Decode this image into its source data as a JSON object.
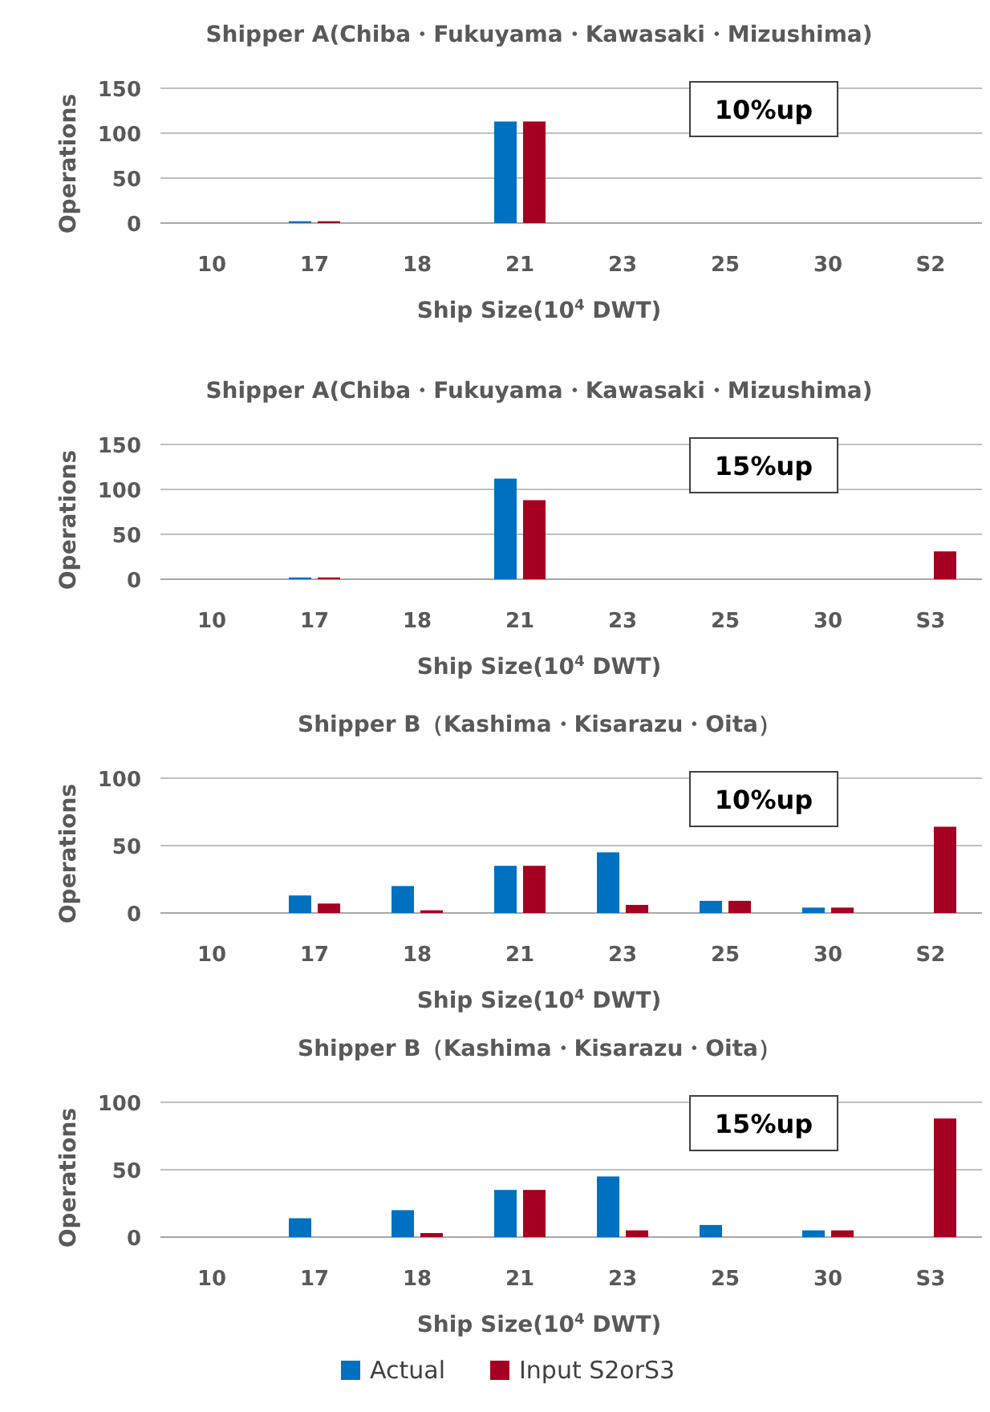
{
  "chart_data": [
    {
      "type": "bar",
      "title": "Shipper A(Chiba・Fukuyama・Kawasaki・Mizushima)",
      "xlabel": "Ship Size(10$^{4}$ DWT)",
      "ylabel": "Operations",
      "categories": [
        "10",
        "17",
        "18",
        "21",
        "23",
        "25",
        "30",
        "S2"
      ],
      "series": [
        {
          "color": "#0070c0",
          "values": [
            0,
            2,
            0,
            113,
            0,
            0,
            0,
            0
          ]
        },
        {
          "color": "#a50021",
          "values": [
            0,
            2,
            0,
            113,
            0,
            0,
            0,
            0
          ]
        }
      ],
      "ylim": [
        0,
        150
      ],
      "yticks": [
        0,
        50,
        100,
        150
      ],
      "grid": "y",
      "legend": false,
      "annotations": [
        "10%up"
      ]
    },
    {
      "type": "bar",
      "title": "Shipper A(Chiba・Fukuyama・Kawasaki・Mizushima)",
      "xlabel": "Ship Size(10$^{4}$ DWT)",
      "ylabel": "Operations",
      "categories": [
        "10",
        "17",
        "18",
        "21",
        "23",
        "25",
        "30",
        "S3"
      ],
      "series": [
        {
          "color": "#0070c0",
          "values": [
            0,
            2,
            0,
            112,
            0,
            0,
            0,
            0
          ]
        },
        {
          "color": "#a50021",
          "values": [
            0,
            2,
            0,
            88,
            0,
            0,
            0,
            31
          ]
        }
      ],
      "ylim": [
        0,
        150
      ],
      "yticks": [
        0,
        50,
        100,
        150
      ],
      "grid": "y",
      "legend": false,
      "annotations": [
        "15%up"
      ]
    },
    {
      "type": "bar",
      "title": "Shipper B（Kashima・Kisarazu・Oita）",
      "xlabel": "Ship Size(10$^{4}$ DWT)",
      "ylabel": "Operations",
      "categories": [
        "10",
        "17",
        "18",
        "21",
        "23",
        "25",
        "30",
        "S2"
      ],
      "series": [
        {
          "color": "#0070c0",
          "values": [
            0,
            13,
            20,
            35,
            45,
            9,
            4,
            0
          ]
        },
        {
          "color": "#a50021",
          "values": [
            0,
            7,
            2,
            35,
            6,
            9,
            4,
            64
          ]
        }
      ],
      "ylim": [
        0,
        100
      ],
      "yticks": [
        0,
        50,
        100
      ],
      "grid": "y",
      "legend": false,
      "annotations": [
        "10%up"
      ]
    },
    {
      "type": "bar",
      "title": "Shipper B（Kashima・Kisarazu・Oita）",
      "xlabel": "Ship Size(10$^{4}$ DWT)",
      "ylabel": "Operations",
      "categories": [
        "10",
        "17",
        "18",
        "21",
        "23",
        "25",
        "30",
        "S3"
      ],
      "series": [
        {
          "name": "Actual",
          "color": "#0070c0",
          "values": [
            0,
            14,
            20,
            35,
            45,
            9,
            5,
            0
          ]
        },
        {
          "name": "Input S2orS3",
          "color": "#a50021",
          "values": [
            0,
            0,
            3,
            35,
            5,
            0,
            5,
            88
          ]
        }
      ],
      "ylim": [
        0,
        100
      ],
      "yticks": [
        0,
        50,
        100
      ],
      "grid": "y",
      "legend": "bottom",
      "annotations": [
        "15%up"
      ]
    }
  ]
}
